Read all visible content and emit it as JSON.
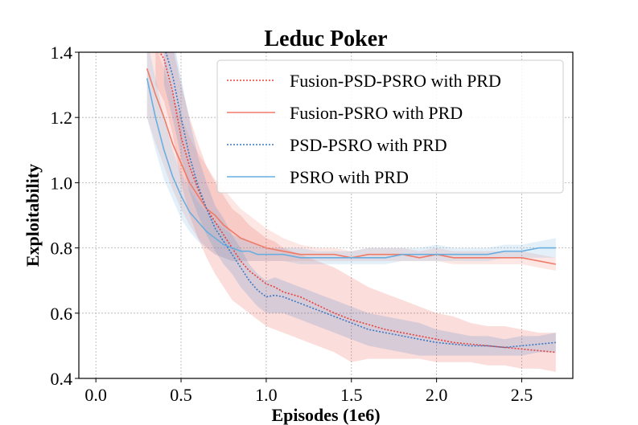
{
  "chart_data": {
    "type": "line",
    "title": "Leduc Poker",
    "xlabel": "Episodes (1e6)",
    "ylabel": "Exploitability",
    "xlim": [
      -0.1,
      2.8
    ],
    "ylim": [
      0.4,
      1.4
    ],
    "xticks": [
      "0.0",
      "0.5",
      "1.0",
      "1.5",
      "2.0",
      "2.5"
    ],
    "yticks": [
      "0.4",
      "0.6",
      "0.8",
      "1.0",
      "1.2",
      "1.4"
    ],
    "grid": true,
    "legend_position": "top-right",
    "series": [
      {
        "name": "Fusion-PSD-PSRO with PRD",
        "color": "#e8413c",
        "style": "dotted",
        "x": [
          0.35,
          0.4,
          0.45,
          0.5,
          0.55,
          0.6,
          0.65,
          0.7,
          0.75,
          0.8,
          0.85,
          0.9,
          0.95,
          1.0,
          1.05,
          1.1,
          1.2,
          1.3,
          1.4,
          1.5,
          1.6,
          1.7,
          1.8,
          1.9,
          2.0,
          2.1,
          2.2,
          2.3,
          2.4,
          2.5,
          2.6,
          2.7
        ],
        "values": [
          1.42,
          1.38,
          1.28,
          1.14,
          1.05,
          0.98,
          0.92,
          0.88,
          0.84,
          0.8,
          0.76,
          0.73,
          0.71,
          0.69,
          0.68,
          0.665,
          0.65,
          0.625,
          0.6,
          0.58,
          0.565,
          0.55,
          0.54,
          0.53,
          0.52,
          0.51,
          0.505,
          0.5,
          0.495,
          0.49,
          0.485,
          0.48
        ],
        "band_lower": [
          1.3,
          1.25,
          1.15,
          1.0,
          0.9,
          0.83,
          0.77,
          0.72,
          0.68,
          0.64,
          0.62,
          0.6,
          0.58,
          0.56,
          0.55,
          0.54,
          0.52,
          0.5,
          0.48,
          0.45,
          0.46,
          0.46,
          0.46,
          0.46,
          0.45,
          0.45,
          0.45,
          0.44,
          0.44,
          0.43,
          0.43,
          0.42
        ],
        "band_upper": [
          1.5,
          1.5,
          1.42,
          1.3,
          1.2,
          1.12,
          1.05,
          1.0,
          0.96,
          0.92,
          0.9,
          0.87,
          0.85,
          0.83,
          0.82,
          0.8,
          0.78,
          0.76,
          0.74,
          0.71,
          0.68,
          0.66,
          0.64,
          0.62,
          0.6,
          0.59,
          0.57,
          0.56,
          0.56,
          0.55,
          0.54,
          0.54
        ]
      },
      {
        "name": "Fusion-PSRO with PRD",
        "color": "#f07a68",
        "style": "solid",
        "x": [
          0.3,
          0.35,
          0.4,
          0.45,
          0.5,
          0.55,
          0.6,
          0.65,
          0.7,
          0.75,
          0.8,
          0.85,
          0.9,
          0.95,
          1.0,
          1.1,
          1.2,
          1.3,
          1.4,
          1.5,
          1.6,
          1.7,
          1.8,
          1.9,
          2.0,
          2.1,
          2.2,
          2.3,
          2.4,
          2.5,
          2.6,
          2.7
        ],
        "values": [
          1.35,
          1.27,
          1.2,
          1.12,
          1.06,
          1.0,
          0.96,
          0.92,
          0.9,
          0.87,
          0.85,
          0.83,
          0.82,
          0.81,
          0.8,
          0.79,
          0.78,
          0.78,
          0.78,
          0.77,
          0.78,
          0.78,
          0.78,
          0.77,
          0.78,
          0.77,
          0.77,
          0.77,
          0.77,
          0.77,
          0.76,
          0.75
        ],
        "band_lower": [
          1.2,
          1.12,
          1.05,
          0.98,
          0.92,
          0.87,
          0.83,
          0.8,
          0.78,
          0.77,
          0.76,
          0.76,
          0.76,
          0.76,
          0.76,
          0.76,
          0.76,
          0.76,
          0.76,
          0.76,
          0.76,
          0.76,
          0.76,
          0.76,
          0.76,
          0.75,
          0.75,
          0.75,
          0.75,
          0.75,
          0.74,
          0.73
        ],
        "band_upper": [
          1.5,
          1.42,
          1.35,
          1.27,
          1.2,
          1.14,
          1.09,
          1.05,
          1.01,
          0.98,
          0.95,
          0.92,
          0.9,
          0.88,
          0.86,
          0.83,
          0.81,
          0.8,
          0.8,
          0.79,
          0.8,
          0.8,
          0.8,
          0.79,
          0.8,
          0.79,
          0.79,
          0.79,
          0.79,
          0.79,
          0.78,
          0.77
        ]
      },
      {
        "name": "PSD-PSRO with PRD",
        "color": "#3a78c4",
        "style": "dotted",
        "x": [
          0.4,
          0.45,
          0.5,
          0.55,
          0.6,
          0.65,
          0.7,
          0.75,
          0.8,
          0.85,
          0.9,
          0.95,
          1.0,
          1.05,
          1.1,
          1.2,
          1.3,
          1.4,
          1.5,
          1.6,
          1.7,
          1.8,
          1.9,
          2.0,
          2.1,
          2.2,
          2.3,
          2.4,
          2.5,
          2.6,
          2.7
        ],
        "values": [
          1.42,
          1.33,
          1.2,
          1.08,
          0.99,
          0.92,
          0.86,
          0.82,
          0.78,
          0.74,
          0.7,
          0.67,
          0.65,
          0.655,
          0.65,
          0.63,
          0.61,
          0.59,
          0.57,
          0.55,
          0.54,
          0.53,
          0.52,
          0.51,
          0.505,
          0.5,
          0.5,
          0.495,
          0.5,
          0.505,
          0.51
        ],
        "band_lower": [
          1.3,
          1.2,
          1.08,
          0.97,
          0.9,
          0.84,
          0.79,
          0.75,
          0.72,
          0.68,
          0.65,
          0.62,
          0.6,
          0.6,
          0.6,
          0.58,
          0.56,
          0.54,
          0.52,
          0.5,
          0.49,
          0.48,
          0.47,
          0.47,
          0.47,
          0.47,
          0.47,
          0.47,
          0.47,
          0.48,
          0.48
        ],
        "band_upper": [
          1.5,
          1.45,
          1.32,
          1.19,
          1.08,
          1.0,
          0.93,
          0.89,
          0.84,
          0.8,
          0.75,
          0.72,
          0.7,
          0.71,
          0.7,
          0.68,
          0.66,
          0.64,
          0.62,
          0.6,
          0.59,
          0.58,
          0.57,
          0.55,
          0.54,
          0.53,
          0.53,
          0.52,
          0.53,
          0.53,
          0.54
        ]
      },
      {
        "name": "PSRO with PRD",
        "color": "#6aaee0",
        "style": "solid",
        "x": [
          0.3,
          0.35,
          0.4,
          0.45,
          0.5,
          0.55,
          0.6,
          0.65,
          0.7,
          0.75,
          0.8,
          0.85,
          0.9,
          0.95,
          1.0,
          1.1,
          1.2,
          1.3,
          1.4,
          1.5,
          1.6,
          1.7,
          1.8,
          1.9,
          2.0,
          2.1,
          2.2,
          2.3,
          2.4,
          2.5,
          2.6,
          2.7
        ],
        "values": [
          1.32,
          1.2,
          1.1,
          1.02,
          0.96,
          0.91,
          0.88,
          0.85,
          0.83,
          0.81,
          0.8,
          0.79,
          0.79,
          0.78,
          0.78,
          0.78,
          0.77,
          0.77,
          0.77,
          0.77,
          0.77,
          0.77,
          0.78,
          0.78,
          0.78,
          0.78,
          0.78,
          0.78,
          0.79,
          0.79,
          0.8,
          0.8
        ],
        "band_lower": [
          1.2,
          1.1,
          1.01,
          0.95,
          0.89,
          0.85,
          0.82,
          0.8,
          0.78,
          0.77,
          0.76,
          0.76,
          0.76,
          0.76,
          0.76,
          0.76,
          0.75,
          0.75,
          0.75,
          0.75,
          0.75,
          0.75,
          0.76,
          0.76,
          0.76,
          0.76,
          0.76,
          0.76,
          0.77,
          0.77,
          0.77,
          0.77
        ],
        "band_upper": [
          1.44,
          1.32,
          1.2,
          1.1,
          1.03,
          0.98,
          0.94,
          0.91,
          0.88,
          0.86,
          0.84,
          0.83,
          0.82,
          0.81,
          0.8,
          0.8,
          0.8,
          0.79,
          0.79,
          0.79,
          0.8,
          0.8,
          0.8,
          0.8,
          0.81,
          0.8,
          0.8,
          0.8,
          0.81,
          0.81,
          0.82,
          0.83
        ]
      }
    ]
  }
}
